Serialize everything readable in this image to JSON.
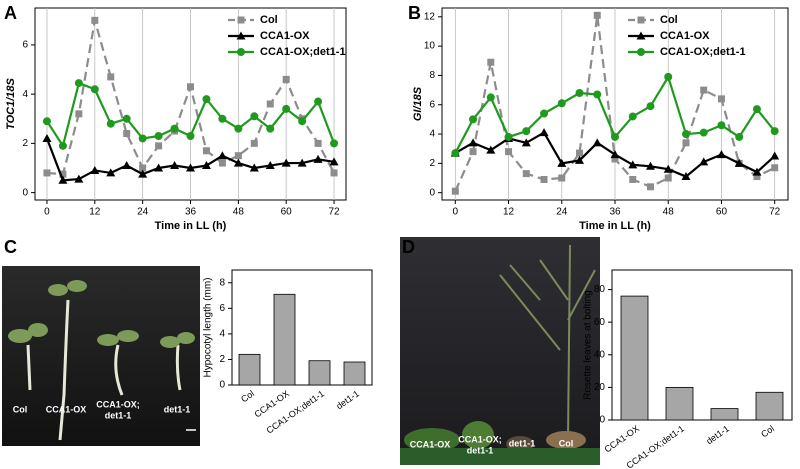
{
  "chart_data": [
    {
      "type": "line",
      "panel": "A",
      "y_label": "TOC1/18S",
      "x_label": "Time in LL (h)",
      "x": [
        0,
        4,
        8,
        12,
        16,
        20,
        24,
        28,
        32,
        36,
        40,
        44,
        48,
        52,
        56,
        60,
        64,
        68,
        72
      ],
      "xlim": [
        -3,
        75
      ],
      "xticks": [
        0,
        12,
        24,
        36,
        48,
        60,
        72
      ],
      "ylim": [
        -0.3,
        7.5
      ],
      "yticks": [
        0,
        2,
        4,
        6
      ],
      "grid": "x",
      "series": [
        {
          "name": "Col",
          "color": "#8c8c8c",
          "marker": "square",
          "dash": true,
          "values": [
            0.8,
            0.75,
            3.2,
            7.0,
            4.7,
            2.4,
            1.0,
            1.9,
            2.5,
            4.3,
            1.7,
            1.2,
            1.5,
            2.0,
            3.6,
            4.6,
            3.0,
            2.0,
            0.8
          ]
        },
        {
          "name": "CCA1-OX",
          "color": "#000000",
          "marker": "triangle",
          "dash": false,
          "values": [
            2.2,
            0.5,
            0.55,
            0.9,
            0.8,
            1.1,
            0.75,
            1.0,
            1.1,
            1.0,
            1.1,
            1.5,
            1.2,
            1.0,
            1.1,
            1.2,
            1.2,
            1.35,
            1.25
          ]
        },
        {
          "name": "CCA1-OX;det1-1",
          "color": "#1f9a1f",
          "marker": "circle",
          "dash": false,
          "values": [
            2.9,
            1.9,
            4.45,
            4.2,
            2.8,
            3.0,
            2.2,
            2.3,
            2.6,
            2.3,
            3.8,
            3.0,
            2.6,
            3.1,
            2.6,
            3.4,
            2.9,
            3.7,
            2.0
          ]
        }
      ]
    },
    {
      "type": "line",
      "panel": "B",
      "y_label": "GI/18S",
      "x_label": "Time in LL (h)",
      "x": [
        0,
        4,
        8,
        12,
        16,
        20,
        24,
        28,
        32,
        36,
        40,
        44,
        48,
        52,
        56,
        60,
        64,
        68,
        72
      ],
      "xlim": [
        -3,
        75
      ],
      "xticks": [
        0,
        12,
        24,
        36,
        48,
        60,
        72
      ],
      "ylim": [
        -0.5,
        12.6
      ],
      "yticks": [
        0,
        2,
        4,
        6,
        8,
        10,
        12
      ],
      "grid": "x",
      "series": [
        {
          "name": "Col",
          "color": "#8c8c8c",
          "marker": "square",
          "dash": true,
          "values": [
            0.1,
            2.8,
            8.9,
            2.8,
            1.3,
            0.9,
            1.0,
            2.7,
            12.1,
            2.3,
            0.9,
            0.4,
            1.0,
            3.4,
            7.0,
            6.4,
            2.0,
            1.1,
            1.7
          ]
        },
        {
          "name": "CCA1-OX",
          "color": "#000000",
          "marker": "triangle",
          "dash": false,
          "values": [
            2.7,
            3.4,
            2.9,
            3.7,
            3.4,
            4.1,
            2.0,
            2.2,
            3.4,
            2.6,
            1.9,
            1.8,
            1.6,
            1.1,
            2.1,
            2.6,
            2.0,
            1.4,
            2.5
          ]
        },
        {
          "name": "CCA1-OX;det1-1",
          "color": "#1f9a1f",
          "marker": "circle",
          "dash": false,
          "values": [
            2.7,
            5.0,
            6.5,
            3.8,
            4.2,
            5.4,
            6.1,
            6.8,
            6.7,
            3.8,
            5.2,
            5.9,
            7.9,
            4.0,
            4.1,
            4.6,
            3.8,
            5.7,
            4.2
          ]
        }
      ]
    },
    {
      "type": "bar",
      "panel": "C",
      "y_label": "Hypocotyl length (mm)",
      "color": "#a6a6a6",
      "categories": [
        "Col",
        "CCA1-OX",
        "CCA1-OX;det1-1",
        "det1-1"
      ],
      "values": [
        2.4,
        7.1,
        1.9,
        1.8
      ],
      "ylim": [
        0,
        9
      ],
      "yticks": [
        0,
        2,
        4,
        6,
        8
      ]
    },
    {
      "type": "bar",
      "panel": "D",
      "y_label": "Rosette leaves at bolting",
      "color": "#a6a6a6",
      "categories": [
        "CCA1-OX",
        "CCA1-OX;det1-1",
        "det1-1",
        "Col"
      ],
      "values": [
        76,
        20,
        7,
        17
      ],
      "ylim": [
        0,
        92
      ],
      "yticks": [
        0,
        20,
        40,
        60,
        80
      ]
    }
  ],
  "photos": [
    {
      "labels": [
        "Col",
        "CCA1-OX",
        "CCA1-OX;",
        "det1-1",
        "det1-1"
      ]
    },
    {
      "labels": [
        "CCA1-OX",
        "CCA1-OX;",
        "det1-1",
        "det1-1",
        "Col"
      ]
    }
  ]
}
